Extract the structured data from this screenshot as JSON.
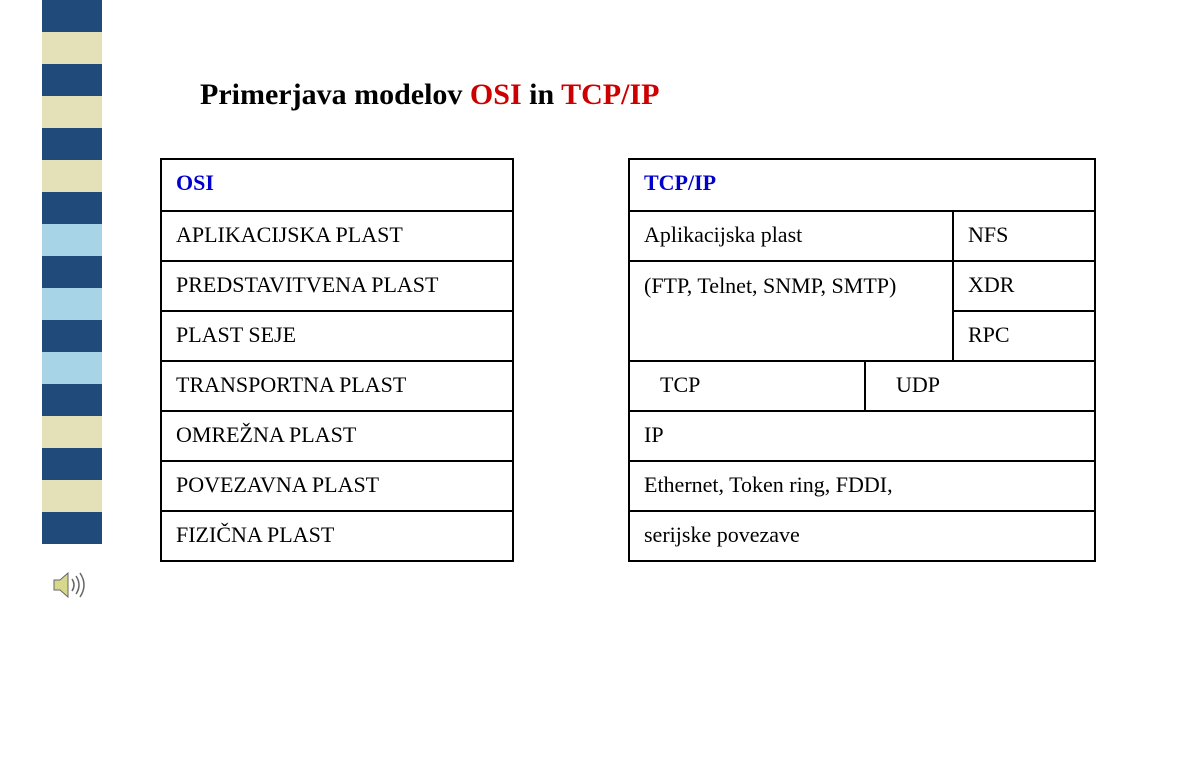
{
  "title_parts": {
    "p1": "Primerjava modelov ",
    "p2": "OSI",
    "p3": " in ",
    "p4": "TCP/IP"
  },
  "stripe_colors": [
    "#204a7a",
    "#e4e0b8",
    "#204a7a",
    "#e4e0b8",
    "#204a7a",
    "#e4e0b8",
    "#204a7a",
    "#a8d4e8",
    "#204a7a",
    "#a8d4e8",
    "#204a7a",
    "#a8d4e8",
    "#204a7a",
    "#e4e0b8",
    "#204a7a",
    "#e4e0b8",
    "#204a7a"
  ],
  "osi": {
    "header": "OSI",
    "rows": [
      "APLIKACIJSKA PLAST",
      "PREDSTAVITVENA PLAST",
      "PLAST SEJE",
      "TRANSPORTNA PLAST",
      "OMREŽNA PLAST",
      "POVEZAVNA PLAST",
      "FIZIČNA PLAST"
    ]
  },
  "tcp": {
    "header": "TCP/IP",
    "app_left": [
      "Aplikacijska plast",
      "(FTP, Telnet, SNMP, SMTP)"
    ],
    "app_right": [
      "NFS",
      "XDR",
      "RPC"
    ],
    "transport": {
      "left": "TCP",
      "right": "UDP"
    },
    "network": "IP",
    "link": "Ethernet, Token ring, FDDI,",
    "phys": "serijske povezave"
  },
  "speaker_colors": {
    "fill": "#d8d88c",
    "stroke": "#666"
  }
}
